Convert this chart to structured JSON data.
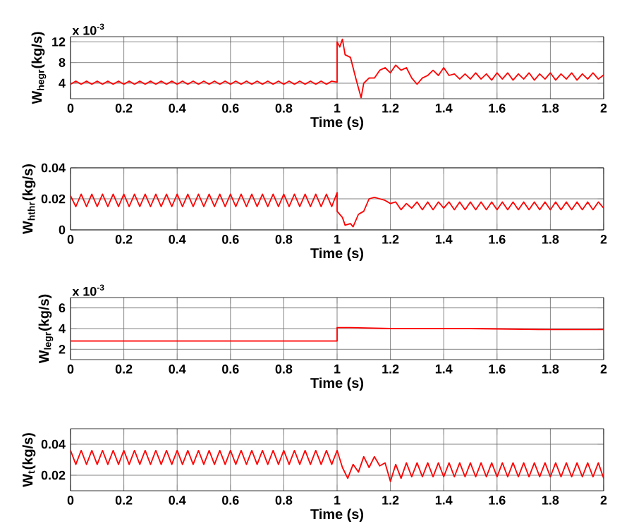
{
  "chart_data": [
    {
      "type": "line",
      "xlabel": "Time (s)",
      "ylabel": "W$_{hegr}$(kg/s)",
      "annotations": [
        "x 10$^{-3}$"
      ],
      "grid": true,
      "xlim": [
        0,
        2
      ],
      "xticks": [
        0,
        0.2,
        0.4,
        0.6,
        0.8,
        1,
        1.2,
        1.4,
        1.6,
        1.8,
        2
      ],
      "ylim": [
        1,
        13
      ],
      "yticks": [
        4,
        8,
        12
      ],
      "series": [
        {
          "color": "#ff0000",
          "x": [
            0,
            0.02,
            0.04,
            0.06,
            0.08,
            0.1,
            0.12,
            0.14,
            0.16,
            0.18,
            0.2,
            0.22,
            0.24,
            0.26,
            0.28,
            0.3,
            0.32,
            0.34,
            0.36,
            0.38,
            0.4,
            0.42,
            0.44,
            0.46,
            0.48,
            0.5,
            0.52,
            0.54,
            0.56,
            0.58,
            0.6,
            0.62,
            0.64,
            0.66,
            0.68,
            0.7,
            0.72,
            0.74,
            0.76,
            0.78,
            0.8,
            0.82,
            0.84,
            0.86,
            0.88,
            0.9,
            0.92,
            0.94,
            0.96,
            0.98,
            1.0,
            1.0,
            1.01,
            1.02,
            1.03,
            1.05,
            1.07,
            1.09,
            1.1,
            1.12,
            1.14,
            1.16,
            1.18,
            1.2,
            1.22,
            1.24,
            1.26,
            1.28,
            1.3,
            1.32,
            1.34,
            1.36,
            1.38,
            1.4,
            1.42,
            1.44,
            1.46,
            1.48,
            1.5,
            1.52,
            1.54,
            1.56,
            1.58,
            1.6,
            1.62,
            1.64,
            1.66,
            1.68,
            1.7,
            1.72,
            1.74,
            1.76,
            1.78,
            1.8,
            1.82,
            1.84,
            1.86,
            1.88,
            1.9,
            1.92,
            1.94,
            1.96,
            1.98,
            2.0
          ],
          "values": [
            3.8,
            4.4,
            3.8,
            4.4,
            3.8,
            4.4,
            3.8,
            4.4,
            3.8,
            4.4,
            3.8,
            4.4,
            3.8,
            4.4,
            3.8,
            4.4,
            3.8,
            4.4,
            3.8,
            4.4,
            3.8,
            4.4,
            3.8,
            4.4,
            3.8,
            4.4,
            3.8,
            4.4,
            3.8,
            4.4,
            3.8,
            4.4,
            3.8,
            4.4,
            3.8,
            4.4,
            3.8,
            4.4,
            3.8,
            4.4,
            3.8,
            4.4,
            3.8,
            4.4,
            3.8,
            4.4,
            3.8,
            4.4,
            3.8,
            4.4,
            4.2,
            12,
            11,
            12.5,
            9.5,
            9,
            5,
            1.2,
            4,
            5,
            5,
            6.5,
            7,
            6,
            7.5,
            6.5,
            7,
            5,
            3.8,
            5,
            5.5,
            6.5,
            5.5,
            7,
            5.5,
            5.8,
            4.8,
            5.8,
            4.8,
            6,
            4.8,
            5.8,
            4.6,
            6,
            4.8,
            6,
            4.6,
            5.8,
            4.8,
            6,
            4.6,
            5.8,
            4.8,
            6,
            4.6,
            5.8,
            4.8,
            6,
            4.6,
            5.8,
            4.8,
            6,
            4.8,
            5.6
          ]
        }
      ]
    },
    {
      "type": "line",
      "xlabel": "Time (s)",
      "ylabel": "W$_{hthr}$(kg/s)",
      "grid": true,
      "xlim": [
        0,
        2
      ],
      "xticks": [
        0,
        0.2,
        0.4,
        0.6,
        0.8,
        1,
        1.2,
        1.4,
        1.6,
        1.8,
        2
      ],
      "ylim": [
        0,
        0.04
      ],
      "yticks": [
        0,
        0.02,
        0.04
      ],
      "series": [
        {
          "color": "#ff0000",
          "x": [
            0,
            0.02,
            0.04,
            0.06,
            0.08,
            0.1,
            0.12,
            0.14,
            0.16,
            0.18,
            0.2,
            0.22,
            0.24,
            0.26,
            0.28,
            0.3,
            0.32,
            0.34,
            0.36,
            0.38,
            0.4,
            0.42,
            0.44,
            0.46,
            0.48,
            0.5,
            0.52,
            0.54,
            0.56,
            0.58,
            0.6,
            0.62,
            0.64,
            0.66,
            0.68,
            0.7,
            0.72,
            0.74,
            0.76,
            0.78,
            0.8,
            0.82,
            0.84,
            0.86,
            0.88,
            0.9,
            0.92,
            0.94,
            0.96,
            0.98,
            1.0,
            1.0,
            1.02,
            1.03,
            1.05,
            1.06,
            1.08,
            1.1,
            1.12,
            1.14,
            1.16,
            1.18,
            1.2,
            1.22,
            1.24,
            1.26,
            1.28,
            1.3,
            1.32,
            1.34,
            1.36,
            1.38,
            1.4,
            1.42,
            1.44,
            1.46,
            1.48,
            1.5,
            1.52,
            1.54,
            1.56,
            1.58,
            1.6,
            1.62,
            1.64,
            1.66,
            1.68,
            1.7,
            1.72,
            1.74,
            1.76,
            1.78,
            1.8,
            1.82,
            1.84,
            1.86,
            1.88,
            1.9,
            1.92,
            1.94,
            1.96,
            1.98,
            2.0
          ],
          "values": [
            0.022,
            0.015,
            0.023,
            0.015,
            0.023,
            0.015,
            0.023,
            0.015,
            0.023,
            0.015,
            0.023,
            0.015,
            0.023,
            0.015,
            0.023,
            0.015,
            0.023,
            0.015,
            0.023,
            0.015,
            0.023,
            0.015,
            0.023,
            0.015,
            0.023,
            0.015,
            0.023,
            0.015,
            0.023,
            0.015,
            0.023,
            0.015,
            0.023,
            0.015,
            0.023,
            0.015,
            0.023,
            0.015,
            0.023,
            0.015,
            0.023,
            0.015,
            0.023,
            0.015,
            0.023,
            0.015,
            0.023,
            0.015,
            0.023,
            0.015,
            0.024,
            0.012,
            0.008,
            0.003,
            0.004,
            0.002,
            0.01,
            0.012,
            0.02,
            0.021,
            0.02,
            0.019,
            0.017,
            0.018,
            0.013,
            0.017,
            0.014,
            0.018,
            0.013,
            0.018,
            0.013,
            0.018,
            0.014,
            0.018,
            0.013,
            0.018,
            0.013,
            0.018,
            0.013,
            0.018,
            0.013,
            0.018,
            0.013,
            0.018,
            0.013,
            0.018,
            0.013,
            0.018,
            0.013,
            0.018,
            0.013,
            0.018,
            0.013,
            0.018,
            0.013,
            0.018,
            0.013,
            0.018,
            0.013,
            0.018,
            0.013,
            0.018,
            0.014
          ]
        }
      ]
    },
    {
      "type": "line",
      "xlabel": "Time (s)",
      "ylabel": "W$_{legr}$(kg/s)",
      "annotations": [
        "x 10$^{-3}$"
      ],
      "grid": true,
      "xlim": [
        0,
        2
      ],
      "xticks": [
        0,
        0.2,
        0.4,
        0.6,
        0.8,
        1,
        1.2,
        1.4,
        1.6,
        1.8,
        2
      ],
      "ylim": [
        1,
        7
      ],
      "yticks": [
        2,
        4,
        6
      ],
      "series": [
        {
          "color": "#ff0000",
          "x": [
            0,
            0.5,
            1.0,
            1.0,
            1.05,
            1.2,
            1.5,
            1.8,
            2.0
          ],
          "values": [
            2.8,
            2.8,
            2.8,
            4.1,
            4.1,
            4.0,
            4.0,
            3.9,
            3.9
          ]
        }
      ]
    },
    {
      "type": "line",
      "xlabel": "Time (s)",
      "ylabel": "W$_{t}$(kg/s)",
      "grid": true,
      "xlim": [
        0,
        2
      ],
      "xticks": [
        0,
        0.2,
        0.4,
        0.6,
        0.8,
        1,
        1.2,
        1.4,
        1.6,
        1.8,
        2
      ],
      "ylim": [
        0.01,
        0.05
      ],
      "yticks": [
        0.02,
        0.04
      ],
      "series": [
        {
          "color": "#ff0000",
          "x": [
            0,
            0.02,
            0.04,
            0.06,
            0.08,
            0.1,
            0.12,
            0.14,
            0.16,
            0.18,
            0.2,
            0.22,
            0.24,
            0.26,
            0.28,
            0.3,
            0.32,
            0.34,
            0.36,
            0.38,
            0.4,
            0.42,
            0.44,
            0.46,
            0.48,
            0.5,
            0.52,
            0.54,
            0.56,
            0.58,
            0.6,
            0.62,
            0.64,
            0.66,
            0.68,
            0.7,
            0.72,
            0.74,
            0.76,
            0.78,
            0.8,
            0.82,
            0.84,
            0.86,
            0.88,
            0.9,
            0.92,
            0.94,
            0.96,
            0.98,
            1.0,
            1.02,
            1.04,
            1.06,
            1.08,
            1.1,
            1.12,
            1.14,
            1.16,
            1.18,
            1.2,
            1.22,
            1.24,
            1.26,
            1.28,
            1.3,
            1.32,
            1.34,
            1.36,
            1.38,
            1.4,
            1.42,
            1.44,
            1.46,
            1.48,
            1.5,
            1.52,
            1.54,
            1.56,
            1.58,
            1.6,
            1.62,
            1.64,
            1.66,
            1.68,
            1.7,
            1.72,
            1.74,
            1.76,
            1.78,
            1.8,
            1.82,
            1.84,
            1.86,
            1.88,
            1.9,
            1.92,
            1.94,
            1.96,
            1.98,
            2.0
          ],
          "values": [
            0.036,
            0.027,
            0.036,
            0.027,
            0.036,
            0.027,
            0.036,
            0.027,
            0.036,
            0.027,
            0.036,
            0.027,
            0.036,
            0.027,
            0.036,
            0.027,
            0.036,
            0.027,
            0.036,
            0.027,
            0.036,
            0.027,
            0.036,
            0.027,
            0.036,
            0.027,
            0.036,
            0.027,
            0.036,
            0.027,
            0.036,
            0.027,
            0.036,
            0.027,
            0.036,
            0.027,
            0.036,
            0.027,
            0.036,
            0.027,
            0.036,
            0.027,
            0.036,
            0.027,
            0.036,
            0.027,
            0.036,
            0.027,
            0.036,
            0.027,
            0.036,
            0.025,
            0.018,
            0.027,
            0.022,
            0.032,
            0.025,
            0.032,
            0.026,
            0.028,
            0.016,
            0.027,
            0.018,
            0.028,
            0.019,
            0.028,
            0.019,
            0.028,
            0.019,
            0.028,
            0.019,
            0.028,
            0.019,
            0.028,
            0.019,
            0.028,
            0.019,
            0.028,
            0.019,
            0.028,
            0.019,
            0.028,
            0.019,
            0.028,
            0.019,
            0.028,
            0.019,
            0.028,
            0.019,
            0.028,
            0.019,
            0.028,
            0.019,
            0.028,
            0.019,
            0.028,
            0.019,
            0.028,
            0.019,
            0.028,
            0.018
          ]
        }
      ]
    }
  ]
}
